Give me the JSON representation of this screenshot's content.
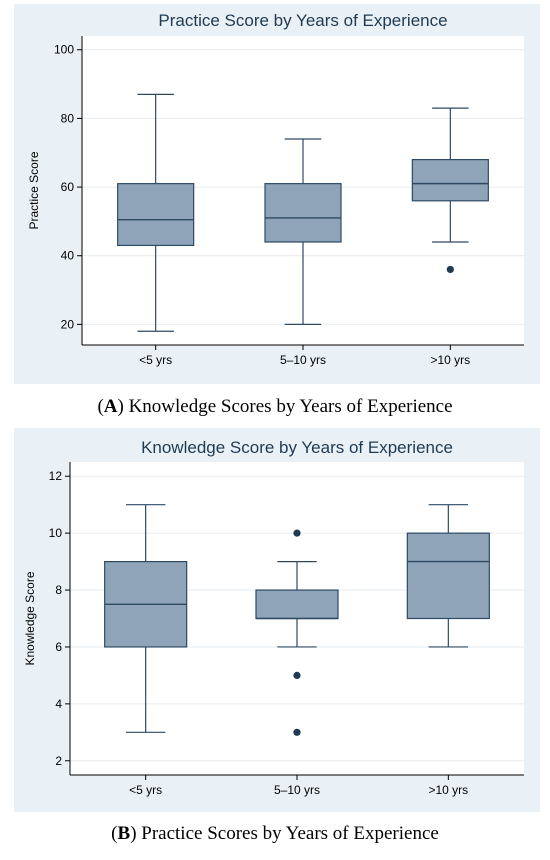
{
  "colors": {
    "panel_background": "#eaf1f6",
    "plot_background": "#ffffff",
    "box_fill": "#8fa4b8",
    "box_stroke": "#2e4a63",
    "title_color": "#1f3a52",
    "gridline": "#e6ebef",
    "outlier": "#1f3a52"
  },
  "captions": [
    {
      "letter": "A",
      "text": "Knowledge Scores by Years of Experience"
    },
    {
      "letter": "B",
      "text": "Practice Scores by Years of Experience"
    }
  ],
  "chart_data": [
    {
      "type": "box",
      "title": "Practice Score by Years of Experience",
      "xlabel": "",
      "ylabel": "Practice Score",
      "ylim": [
        14,
        104
      ],
      "yticks": [
        20,
        40,
        60,
        80,
        100
      ],
      "grid": true,
      "categories": [
        "<5 yrs",
        "5–10 yrs",
        ">10 yrs"
      ],
      "boxes": [
        {
          "min": 18,
          "q1": 43,
          "median": 50.5,
          "q3": 61,
          "max": 87,
          "outliers": []
        },
        {
          "min": 20,
          "q1": 44,
          "median": 51,
          "q3": 61,
          "max": 74,
          "outliers": []
        },
        {
          "min": 44,
          "q1": 56,
          "median": 61,
          "q3": 68,
          "max": 83,
          "outliers": [
            36
          ]
        }
      ]
    },
    {
      "type": "box",
      "title": "Knowledge Score by Years of Experience",
      "xlabel": "",
      "ylabel": "Knowledge Score",
      "ylim": [
        1.5,
        12.5
      ],
      "yticks": [
        2,
        4,
        6,
        8,
        10,
        12
      ],
      "grid": true,
      "categories": [
        "<5 yrs",
        "5–10 yrs",
        ">10 yrs"
      ],
      "boxes": [
        {
          "min": 3,
          "q1": 6,
          "median": 7.5,
          "q3": 9,
          "max": 11,
          "outliers": []
        },
        {
          "min": 6,
          "q1": 7,
          "median": 7,
          "q3": 8,
          "max": 9,
          "outliers": [
            10,
            5,
            3
          ]
        },
        {
          "min": 6,
          "q1": 7,
          "median": 9,
          "q3": 10,
          "max": 11,
          "outliers": []
        }
      ]
    }
  ]
}
